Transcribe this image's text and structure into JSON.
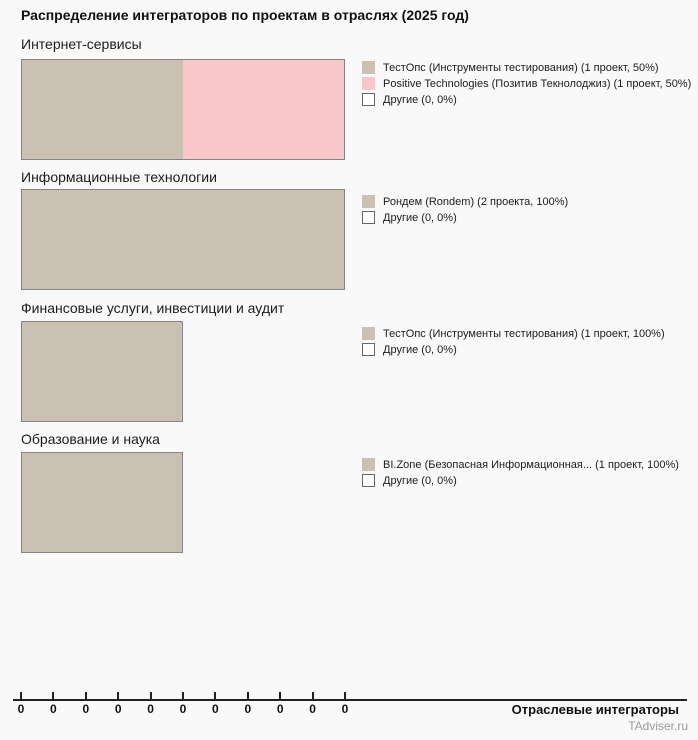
{
  "title": "Распределение интеграторов по проектам в отраслях (2025 год)",
  "colors": {
    "background": "#f9f9f9",
    "tan": "#cbc1b3",
    "pink": "#f9c6c9",
    "other_fill": "#ffffff",
    "bar_border": "#858585",
    "axis": "#222222",
    "watermark": "#9a9a9a"
  },
  "sections": [
    {
      "label": "Интернет-сервисы",
      "legend": [
        {
          "swatch_color": "#cbc1b3",
          "label": "ТестОпс (Инструменты тестирования) (1 проект, 50%)"
        },
        {
          "swatch_color": "#f9c6c9",
          "label": "Positive Technologies (Позитив Текнолоджиз) (1 проект, 50%)"
        },
        {
          "swatch_color": "#ffffff",
          "label": "Другие (0, 0%)"
        }
      ]
    },
    {
      "label": "Информационные технологии",
      "legend": [
        {
          "swatch_color": "#cbc1b3",
          "label": "Рондем (Rondem) (2 проекта, 100%)"
        },
        {
          "swatch_color": "#ffffff",
          "label": "Другие (0, 0%)"
        }
      ]
    },
    {
      "label": "Финансовые услуги, инвестиции и аудит",
      "legend": [
        {
          "swatch_color": "#cbc1b3",
          "label": "ТестОпс (Инструменты тестирования) (1 проект, 100%)"
        },
        {
          "swatch_color": "#ffffff",
          "label": "Другие (0, 0%)"
        }
      ]
    },
    {
      "label": "Образование и наука",
      "legend": [
        {
          "swatch_color": "#cbc1b3",
          "label": "BI.Zone (Безопасная Информационная... (1 проект, 100%)"
        },
        {
          "swatch_color": "#ffffff",
          "label": "Другие (0, 0%)"
        }
      ]
    }
  ],
  "x_axis": {
    "tick_labels": [
      "0",
      "0",
      "0",
      "0",
      "0",
      "0",
      "0",
      "0",
      "0",
      "0",
      "0"
    ],
    "title": "Отраслевые интеграторы"
  },
  "watermark": "TAdviser.ru",
  "chart_data": {
    "type": "bar",
    "orientation": "horizontal",
    "stacked": true,
    "title": "Распределение интеграторов по проектам в отраслях (2025 год)",
    "xlabel": "Отраслевые интеграторы",
    "xlim": [
      0,
      2
    ],
    "x_tick_labels_shown": [
      "0",
      "0",
      "0",
      "0",
      "0",
      "0",
      "0",
      "0",
      "0",
      "0",
      "0"
    ],
    "grid": false,
    "legend_position": "right-of-each-bar",
    "categories": [
      "Интернет-сервисы",
      "Информационные технологии",
      "Финансовые услуги, инвестиции и аудит",
      "Образование и наука"
    ],
    "groups": [
      {
        "category": "Интернет-сервисы",
        "segments": [
          {
            "name": "ТестОпс (Инструменты тестирования)",
            "projects": 1,
            "percent": 50,
            "color": "#cbc1b3"
          },
          {
            "name": "Positive Technologies (Позитив Текнолоджиз)",
            "projects": 1,
            "percent": 50,
            "color": "#f9c6c9"
          },
          {
            "name": "Другие",
            "projects": 0,
            "percent": 0,
            "color": "#ffffff"
          }
        ]
      },
      {
        "category": "Информационные технологии",
        "segments": [
          {
            "name": "Рондем (Rondem)",
            "projects": 2,
            "percent": 100,
            "color": "#cbc1b3"
          },
          {
            "name": "Другие",
            "projects": 0,
            "percent": 0,
            "color": "#ffffff"
          }
        ]
      },
      {
        "category": "Финансовые услуги, инвестиции и аудит",
        "segments": [
          {
            "name": "ТестОпс (Инструменты тестирования)",
            "projects": 1,
            "percent": 100,
            "color": "#cbc1b3"
          },
          {
            "name": "Другие",
            "projects": 0,
            "percent": 0,
            "color": "#ffffff"
          }
        ]
      },
      {
        "category": "Образование и наука",
        "segments": [
          {
            "name": "BI.Zone (Безопасная Информационная...",
            "projects": 1,
            "percent": 100,
            "color": "#cbc1b3"
          },
          {
            "name": "Другие",
            "projects": 0,
            "percent": 0,
            "color": "#ffffff"
          }
        ]
      }
    ]
  }
}
